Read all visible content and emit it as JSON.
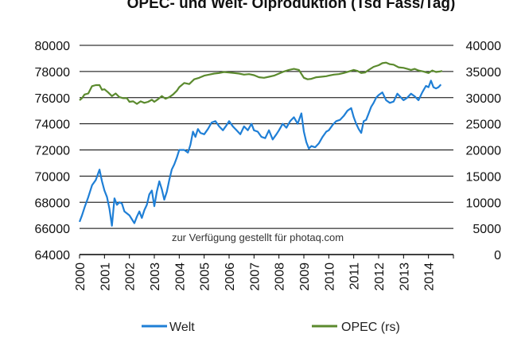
{
  "chart_data": {
    "type": "line",
    "title": "OPEC- und Welt- Ölproduktion (Tsd Fass/Tag)",
    "x_ticks": [
      "2000",
      "2001",
      "2002",
      "2003",
      "2004",
      "2005",
      "2006",
      "2007",
      "2008",
      "2009",
      "2010",
      "2011",
      "2012",
      "2013",
      "2014"
    ],
    "x_range": [
      2000,
      2015
    ],
    "left_axis": {
      "ticks": [
        "64000",
        "66000",
        "68000",
        "70000",
        "72000",
        "74000",
        "76000",
        "78000",
        "80000"
      ],
      "range": [
        64000,
        80000
      ]
    },
    "right_axis": {
      "ticks": [
        "0",
        "5000",
        "10000",
        "15000",
        "20000",
        "25000",
        "30000",
        "35000",
        "40000"
      ],
      "range": [
        0,
        40000
      ]
    },
    "grid": "horizontal",
    "legend_position": "bottom",
    "series": [
      {
        "name": "Welt",
        "axis": "left",
        "color": "#1f7fd6",
        "points": [
          [
            2000.0,
            66500
          ],
          [
            2000.1,
            67000
          ],
          [
            2000.2,
            67600
          ],
          [
            2000.35,
            68400
          ],
          [
            2000.5,
            69300
          ],
          [
            2000.65,
            69700
          ],
          [
            2000.8,
            70500
          ],
          [
            2000.9,
            69600
          ],
          [
            2001.0,
            68900
          ],
          [
            2001.1,
            68400
          ],
          [
            2001.2,
            67500
          ],
          [
            2001.3,
            66200
          ],
          [
            2001.4,
            68300
          ],
          [
            2001.5,
            67800
          ],
          [
            2001.6,
            68000
          ],
          [
            2001.7,
            67900
          ],
          [
            2001.8,
            67300
          ],
          [
            2002.0,
            67000
          ],
          [
            2002.1,
            66700
          ],
          [
            2002.2,
            66400
          ],
          [
            2002.3,
            66900
          ],
          [
            2002.4,
            67300
          ],
          [
            2002.5,
            66800
          ],
          [
            2002.6,
            67400
          ],
          [
            2002.7,
            67800
          ],
          [
            2002.8,
            68600
          ],
          [
            2002.9,
            68900
          ],
          [
            2003.0,
            67700
          ],
          [
            2003.1,
            68800
          ],
          [
            2003.2,
            69600
          ],
          [
            2003.3,
            69000
          ],
          [
            2003.4,
            68200
          ],
          [
            2003.5,
            68800
          ],
          [
            2003.6,
            69700
          ],
          [
            2003.7,
            70500
          ],
          [
            2003.8,
            70900
          ],
          [
            2003.9,
            71400
          ],
          [
            2004.0,
            72000
          ],
          [
            2004.2,
            72000
          ],
          [
            2004.35,
            71800
          ],
          [
            2004.45,
            72400
          ],
          [
            2004.55,
            73400
          ],
          [
            2004.65,
            73000
          ],
          [
            2004.75,
            73600
          ],
          [
            2004.85,
            73300
          ],
          [
            2005.0,
            73200
          ],
          [
            2005.15,
            73600
          ],
          [
            2005.3,
            74100
          ],
          [
            2005.45,
            74200
          ],
          [
            2005.6,
            73800
          ],
          [
            2005.75,
            73500
          ],
          [
            2005.9,
            73900
          ],
          [
            2006.0,
            74200
          ],
          [
            2006.15,
            73800
          ],
          [
            2006.3,
            73500
          ],
          [
            2006.45,
            73200
          ],
          [
            2006.6,
            73800
          ],
          [
            2006.75,
            73500
          ],
          [
            2006.9,
            74000
          ],
          [
            2007.0,
            73500
          ],
          [
            2007.15,
            73400
          ],
          [
            2007.3,
            73000
          ],
          [
            2007.45,
            72900
          ],
          [
            2007.6,
            73500
          ],
          [
            2007.75,
            72800
          ],
          [
            2007.9,
            73200
          ],
          [
            2008.0,
            73500
          ],
          [
            2008.15,
            74000
          ],
          [
            2008.3,
            73700
          ],
          [
            2008.45,
            74200
          ],
          [
            2008.6,
            74500
          ],
          [
            2008.75,
            74000
          ],
          [
            2008.9,
            74800
          ],
          [
            2009.0,
            73400
          ],
          [
            2009.1,
            72600
          ],
          [
            2009.2,
            72100
          ],
          [
            2009.3,
            72300
          ],
          [
            2009.45,
            72200
          ],
          [
            2009.6,
            72500
          ],
          [
            2009.75,
            73000
          ],
          [
            2009.9,
            73400
          ],
          [
            2010.0,
            73500
          ],
          [
            2010.15,
            73900
          ],
          [
            2010.3,
            74200
          ],
          [
            2010.45,
            74300
          ],
          [
            2010.6,
            74600
          ],
          [
            2010.75,
            75000
          ],
          [
            2010.9,
            75200
          ],
          [
            2011.0,
            74500
          ],
          [
            2011.1,
            74000
          ],
          [
            2011.2,
            73600
          ],
          [
            2011.3,
            73300
          ],
          [
            2011.4,
            74200
          ],
          [
            2011.5,
            74300
          ],
          [
            2011.6,
            74800
          ],
          [
            2011.7,
            75300
          ],
          [
            2011.8,
            75600
          ],
          [
            2011.9,
            76000
          ],
          [
            2012.0,
            76200
          ],
          [
            2012.15,
            76400
          ],
          [
            2012.3,
            75800
          ],
          [
            2012.45,
            75600
          ],
          [
            2012.6,
            75700
          ],
          [
            2012.75,
            76300
          ],
          [
            2012.9,
            76000
          ],
          [
            2013.0,
            75800
          ],
          [
            2013.15,
            76000
          ],
          [
            2013.3,
            76300
          ],
          [
            2013.45,
            76100
          ],
          [
            2013.6,
            75800
          ],
          [
            2013.75,
            76400
          ],
          [
            2013.9,
            76900
          ],
          [
            2014.0,
            76800
          ],
          [
            2014.1,
            77300
          ],
          [
            2014.2,
            76800
          ],
          [
            2014.3,
            76700
          ],
          [
            2014.4,
            76800
          ],
          [
            2014.5,
            77000
          ]
        ]
      },
      {
        "name": "OPEC (rs)",
        "axis": "right",
        "color": "#5b8a2e",
        "points": [
          [
            2000.0,
            29500
          ],
          [
            2000.1,
            29900
          ],
          [
            2000.2,
            30600
          ],
          [
            2000.35,
            30800
          ],
          [
            2000.5,
            32200
          ],
          [
            2000.65,
            32400
          ],
          [
            2000.8,
            32400
          ],
          [
            2000.9,
            31500
          ],
          [
            2001.0,
            31600
          ],
          [
            2001.15,
            31000
          ],
          [
            2001.3,
            30300
          ],
          [
            2001.45,
            30800
          ],
          [
            2001.6,
            30100
          ],
          [
            2001.75,
            29900
          ],
          [
            2001.9,
            29900
          ],
          [
            2002.0,
            29200
          ],
          [
            2002.15,
            29300
          ],
          [
            2002.3,
            28800
          ],
          [
            2002.45,
            29300
          ],
          [
            2002.6,
            29000
          ],
          [
            2002.75,
            29200
          ],
          [
            2002.9,
            29600
          ],
          [
            2003.0,
            29200
          ],
          [
            2003.15,
            29700
          ],
          [
            2003.3,
            30300
          ],
          [
            2003.45,
            29800
          ],
          [
            2003.6,
            30100
          ],
          [
            2003.75,
            30600
          ],
          [
            2003.9,
            31300
          ],
          [
            2004.0,
            32000
          ],
          [
            2004.2,
            32800
          ],
          [
            2004.4,
            32600
          ],
          [
            2004.6,
            33500
          ],
          [
            2004.8,
            33800
          ],
          [
            2005.0,
            34200
          ],
          [
            2005.2,
            34400
          ],
          [
            2005.4,
            34600
          ],
          [
            2005.6,
            34700
          ],
          [
            2005.8,
            34900
          ],
          [
            2006.0,
            34800
          ],
          [
            2006.2,
            34700
          ],
          [
            2006.4,
            34600
          ],
          [
            2006.6,
            34400
          ],
          [
            2006.8,
            34500
          ],
          [
            2007.0,
            34300
          ],
          [
            2007.2,
            33900
          ],
          [
            2007.4,
            33800
          ],
          [
            2007.6,
            34000
          ],
          [
            2007.8,
            34200
          ],
          [
            2008.0,
            34600
          ],
          [
            2008.2,
            35000
          ],
          [
            2008.4,
            35300
          ],
          [
            2008.6,
            35500
          ],
          [
            2008.8,
            35300
          ],
          [
            2009.0,
            33800
          ],
          [
            2009.15,
            33500
          ],
          [
            2009.3,
            33600
          ],
          [
            2009.5,
            33900
          ],
          [
            2009.7,
            34000
          ],
          [
            2009.9,
            34100
          ],
          [
            2010.0,
            34200
          ],
          [
            2010.2,
            34400
          ],
          [
            2010.4,
            34500
          ],
          [
            2010.6,
            34700
          ],
          [
            2010.8,
            35000
          ],
          [
            2011.0,
            35300
          ],
          [
            2011.15,
            35100
          ],
          [
            2011.3,
            34700
          ],
          [
            2011.45,
            34800
          ],
          [
            2011.6,
            35300
          ],
          [
            2011.8,
            35900
          ],
          [
            2012.0,
            36200
          ],
          [
            2012.15,
            36600
          ],
          [
            2012.3,
            36700
          ],
          [
            2012.45,
            36400
          ],
          [
            2012.6,
            36300
          ],
          [
            2012.8,
            35800
          ],
          [
            2013.0,
            35700
          ],
          [
            2013.15,
            35500
          ],
          [
            2013.3,
            35300
          ],
          [
            2013.45,
            35500
          ],
          [
            2013.6,
            35200
          ],
          [
            2013.8,
            35000
          ],
          [
            2014.0,
            34700
          ],
          [
            2014.15,
            35200
          ],
          [
            2014.3,
            34900
          ],
          [
            2014.45,
            35000
          ],
          [
            2014.55,
            35100
          ]
        ]
      }
    ],
    "watermark": "zur Verfügung gestellt für photaq.com"
  }
}
